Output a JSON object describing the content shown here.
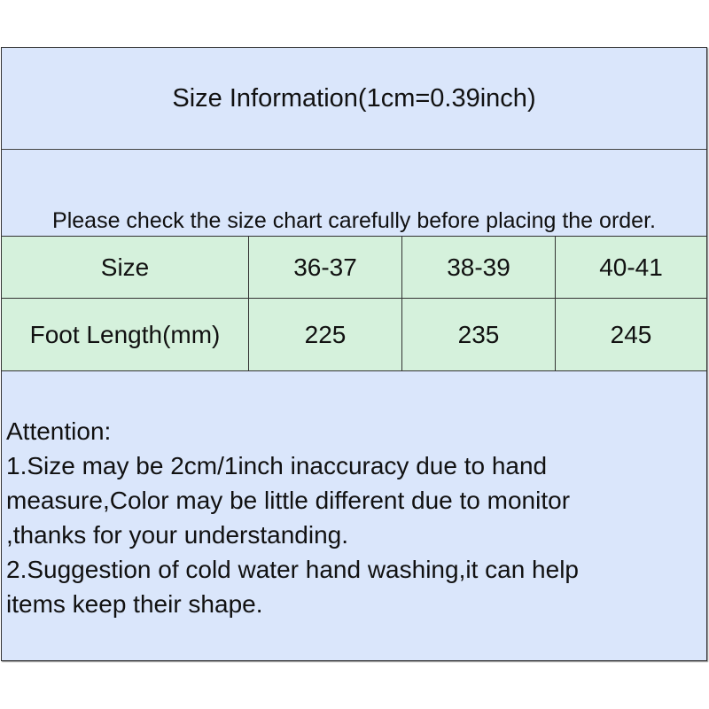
{
  "title": "Size Information(1cm=0.39inch)",
  "notice": "Please check the size chart carefully before placing the order.",
  "table": {
    "rows": [
      [
        "Size",
        "36-37",
        "38-39",
        "40-41"
      ],
      [
        "Foot Length(mm)",
        "225",
        "235",
        "245"
      ]
    ]
  },
  "attention": {
    "lines": [
      "Attention:",
      "1.Size may be 2cm/1inch inaccuracy due to hand",
      "measure,Color may be little different due to monitor",
      ",thanks for your understanding.",
      "2.Suggestion of cold water hand washing,it can help",
      "items keep their shape."
    ]
  },
  "colors": {
    "background": "#dae6fb",
    "table": "#d5f1dc"
  }
}
